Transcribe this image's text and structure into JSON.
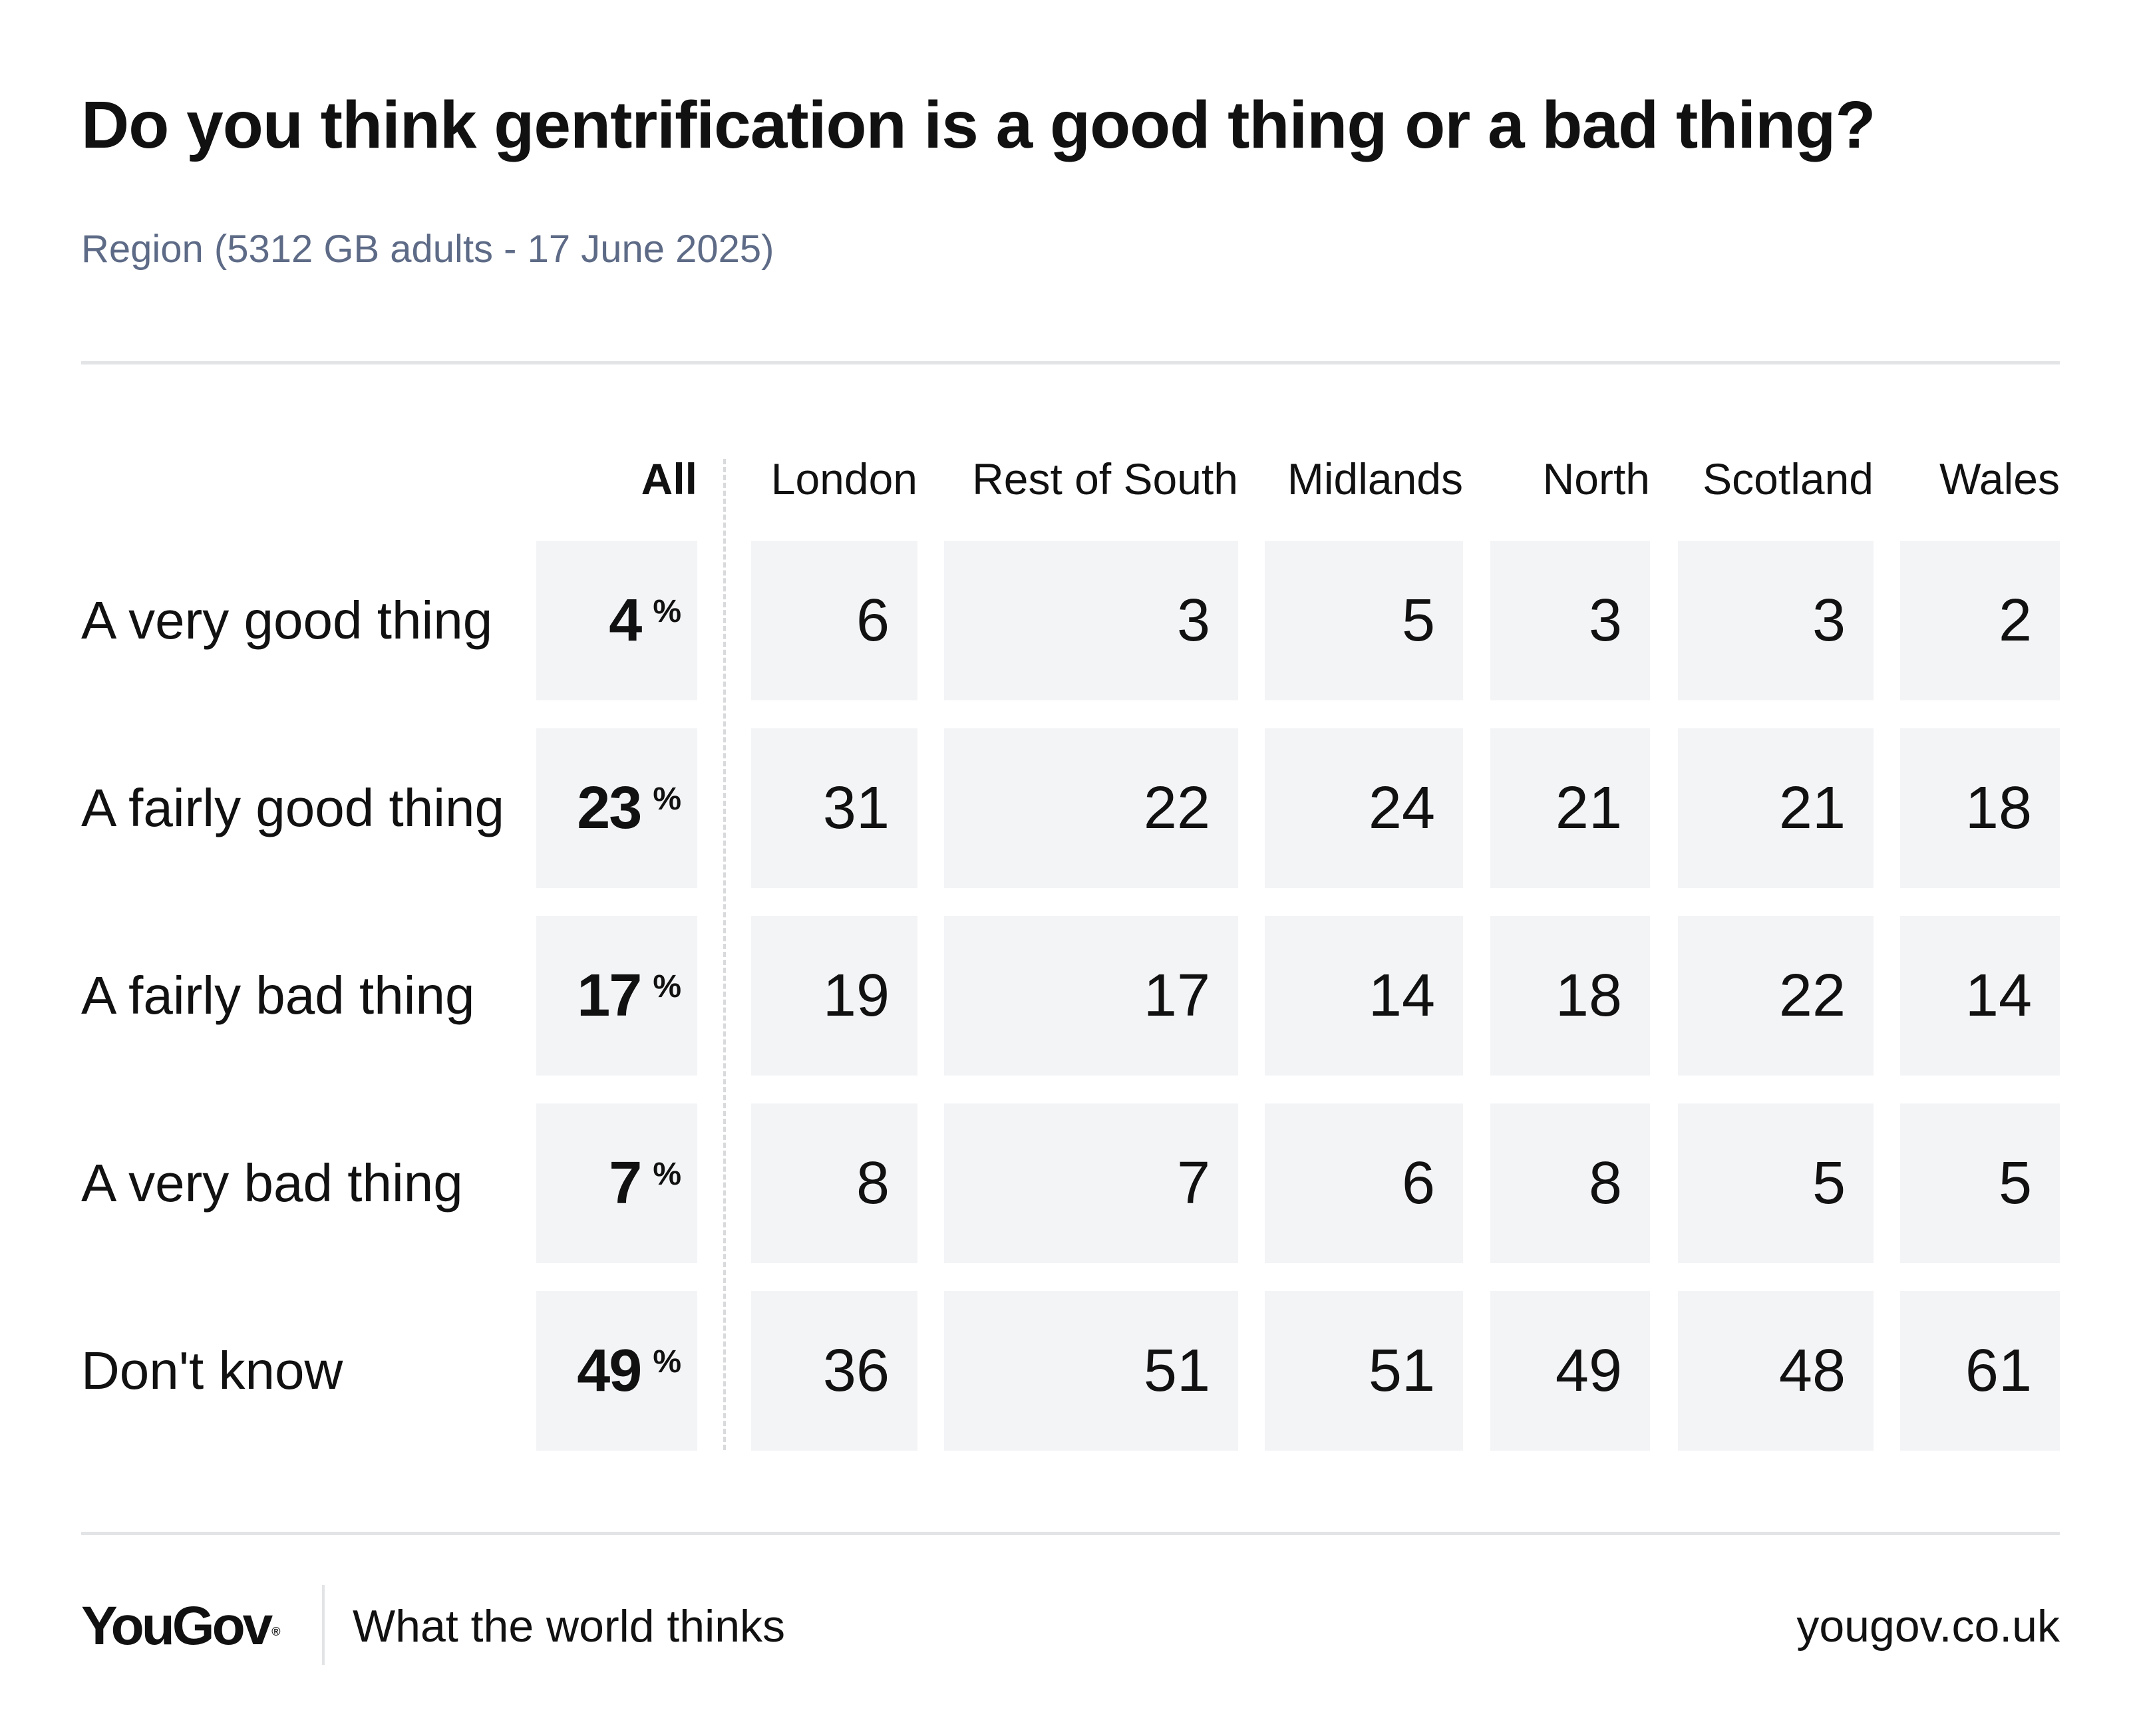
{
  "chart_data": {
    "type": "table",
    "title": "Do you think gentrification is a good thing or a bad thing?",
    "subtitle": "Region (5312 GB adults - 17 June 2025)",
    "columns": [
      "All",
      "London",
      "Rest of South",
      "Midlands",
      "North",
      "Scotland",
      "Wales"
    ],
    "pct_symbol": "%",
    "rows": [
      {
        "label": "A very good thing",
        "values": [
          4,
          6,
          3,
          5,
          3,
          3,
          2
        ]
      },
      {
        "label": "A fairly good thing",
        "values": [
          23,
          31,
          22,
          24,
          21,
          21,
          18
        ]
      },
      {
        "label": "A fairly bad thing",
        "values": [
          17,
          19,
          17,
          14,
          18,
          22,
          14
        ]
      },
      {
        "label": "A very bad thing",
        "values": [
          7,
          8,
          7,
          6,
          8,
          5,
          5
        ]
      },
      {
        "label": "Don't know",
        "values": [
          49,
          36,
          51,
          51,
          49,
          48,
          61
        ]
      }
    ],
    "cell_color": "#f3f4f6",
    "subtitle_color": "#5e6b87"
  },
  "footer": {
    "logo": "YouGov",
    "logo_mark": "®",
    "tagline": "What the world thinks",
    "url": "yougov.co.uk"
  }
}
